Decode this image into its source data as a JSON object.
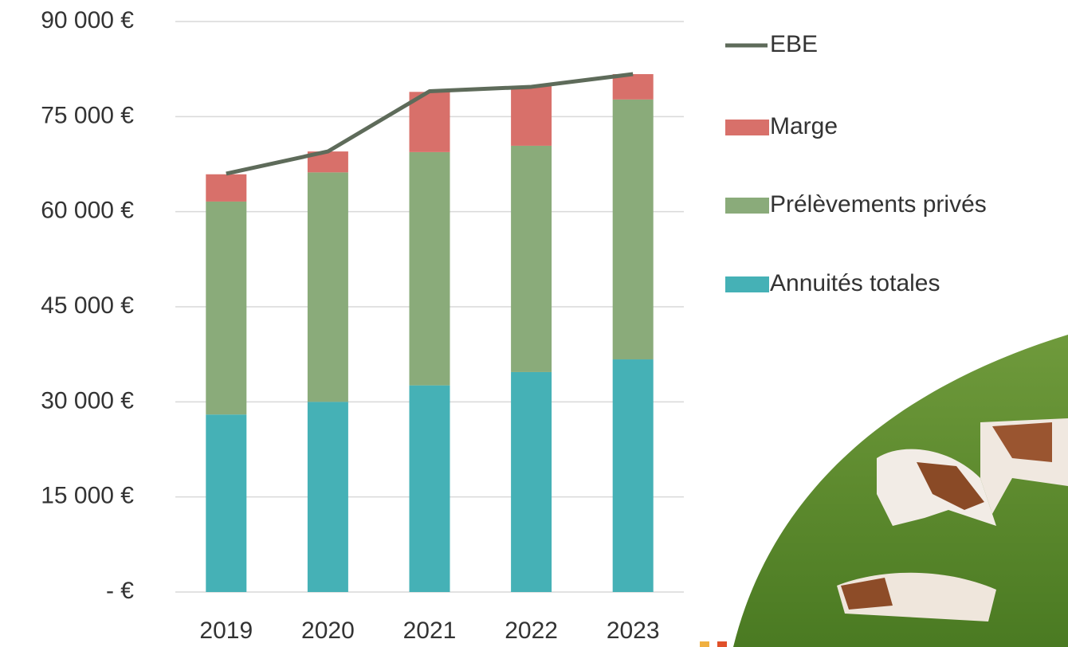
{
  "chart_data": {
    "type": "bar",
    "categories": [
      "2019",
      "2020",
      "2021",
      "2022",
      "2023"
    ],
    "series": [
      {
        "name": "Annuités totales",
        "color": "#45b1b6",
        "values": [
          28000,
          30000,
          32600,
          34700,
          36700
        ]
      },
      {
        "name": "Prélèvements privés",
        "color": "#8aab7a",
        "values": [
          33600,
          36200,
          36800,
          35700,
          41000
        ]
      },
      {
        "name": "Marge",
        "color": "#d8706a",
        "values": [
          4300,
          3300,
          9500,
          9400,
          4000
        ]
      },
      {
        "name": "EBE",
        "type": "line",
        "color": "#5e6b5a",
        "values": [
          66000,
          69500,
          79000,
          79700,
          81700
        ]
      }
    ],
    "stacked": true,
    "ylim": [
      0,
      90000
    ],
    "yticks": [
      {
        "value": 0,
        "label": "-   €"
      },
      {
        "value": 15000,
        "label": "15 000 €"
      },
      {
        "value": 30000,
        "label": "30 000 €"
      },
      {
        "value": 45000,
        "label": "45 000 €"
      },
      {
        "value": 60000,
        "label": "60 000 €"
      },
      {
        "value": 75000,
        "label": "75 000 €"
      },
      {
        "value": 90000,
        "label": "90 000 €"
      }
    ],
    "grid": true,
    "legend": "right"
  }
}
